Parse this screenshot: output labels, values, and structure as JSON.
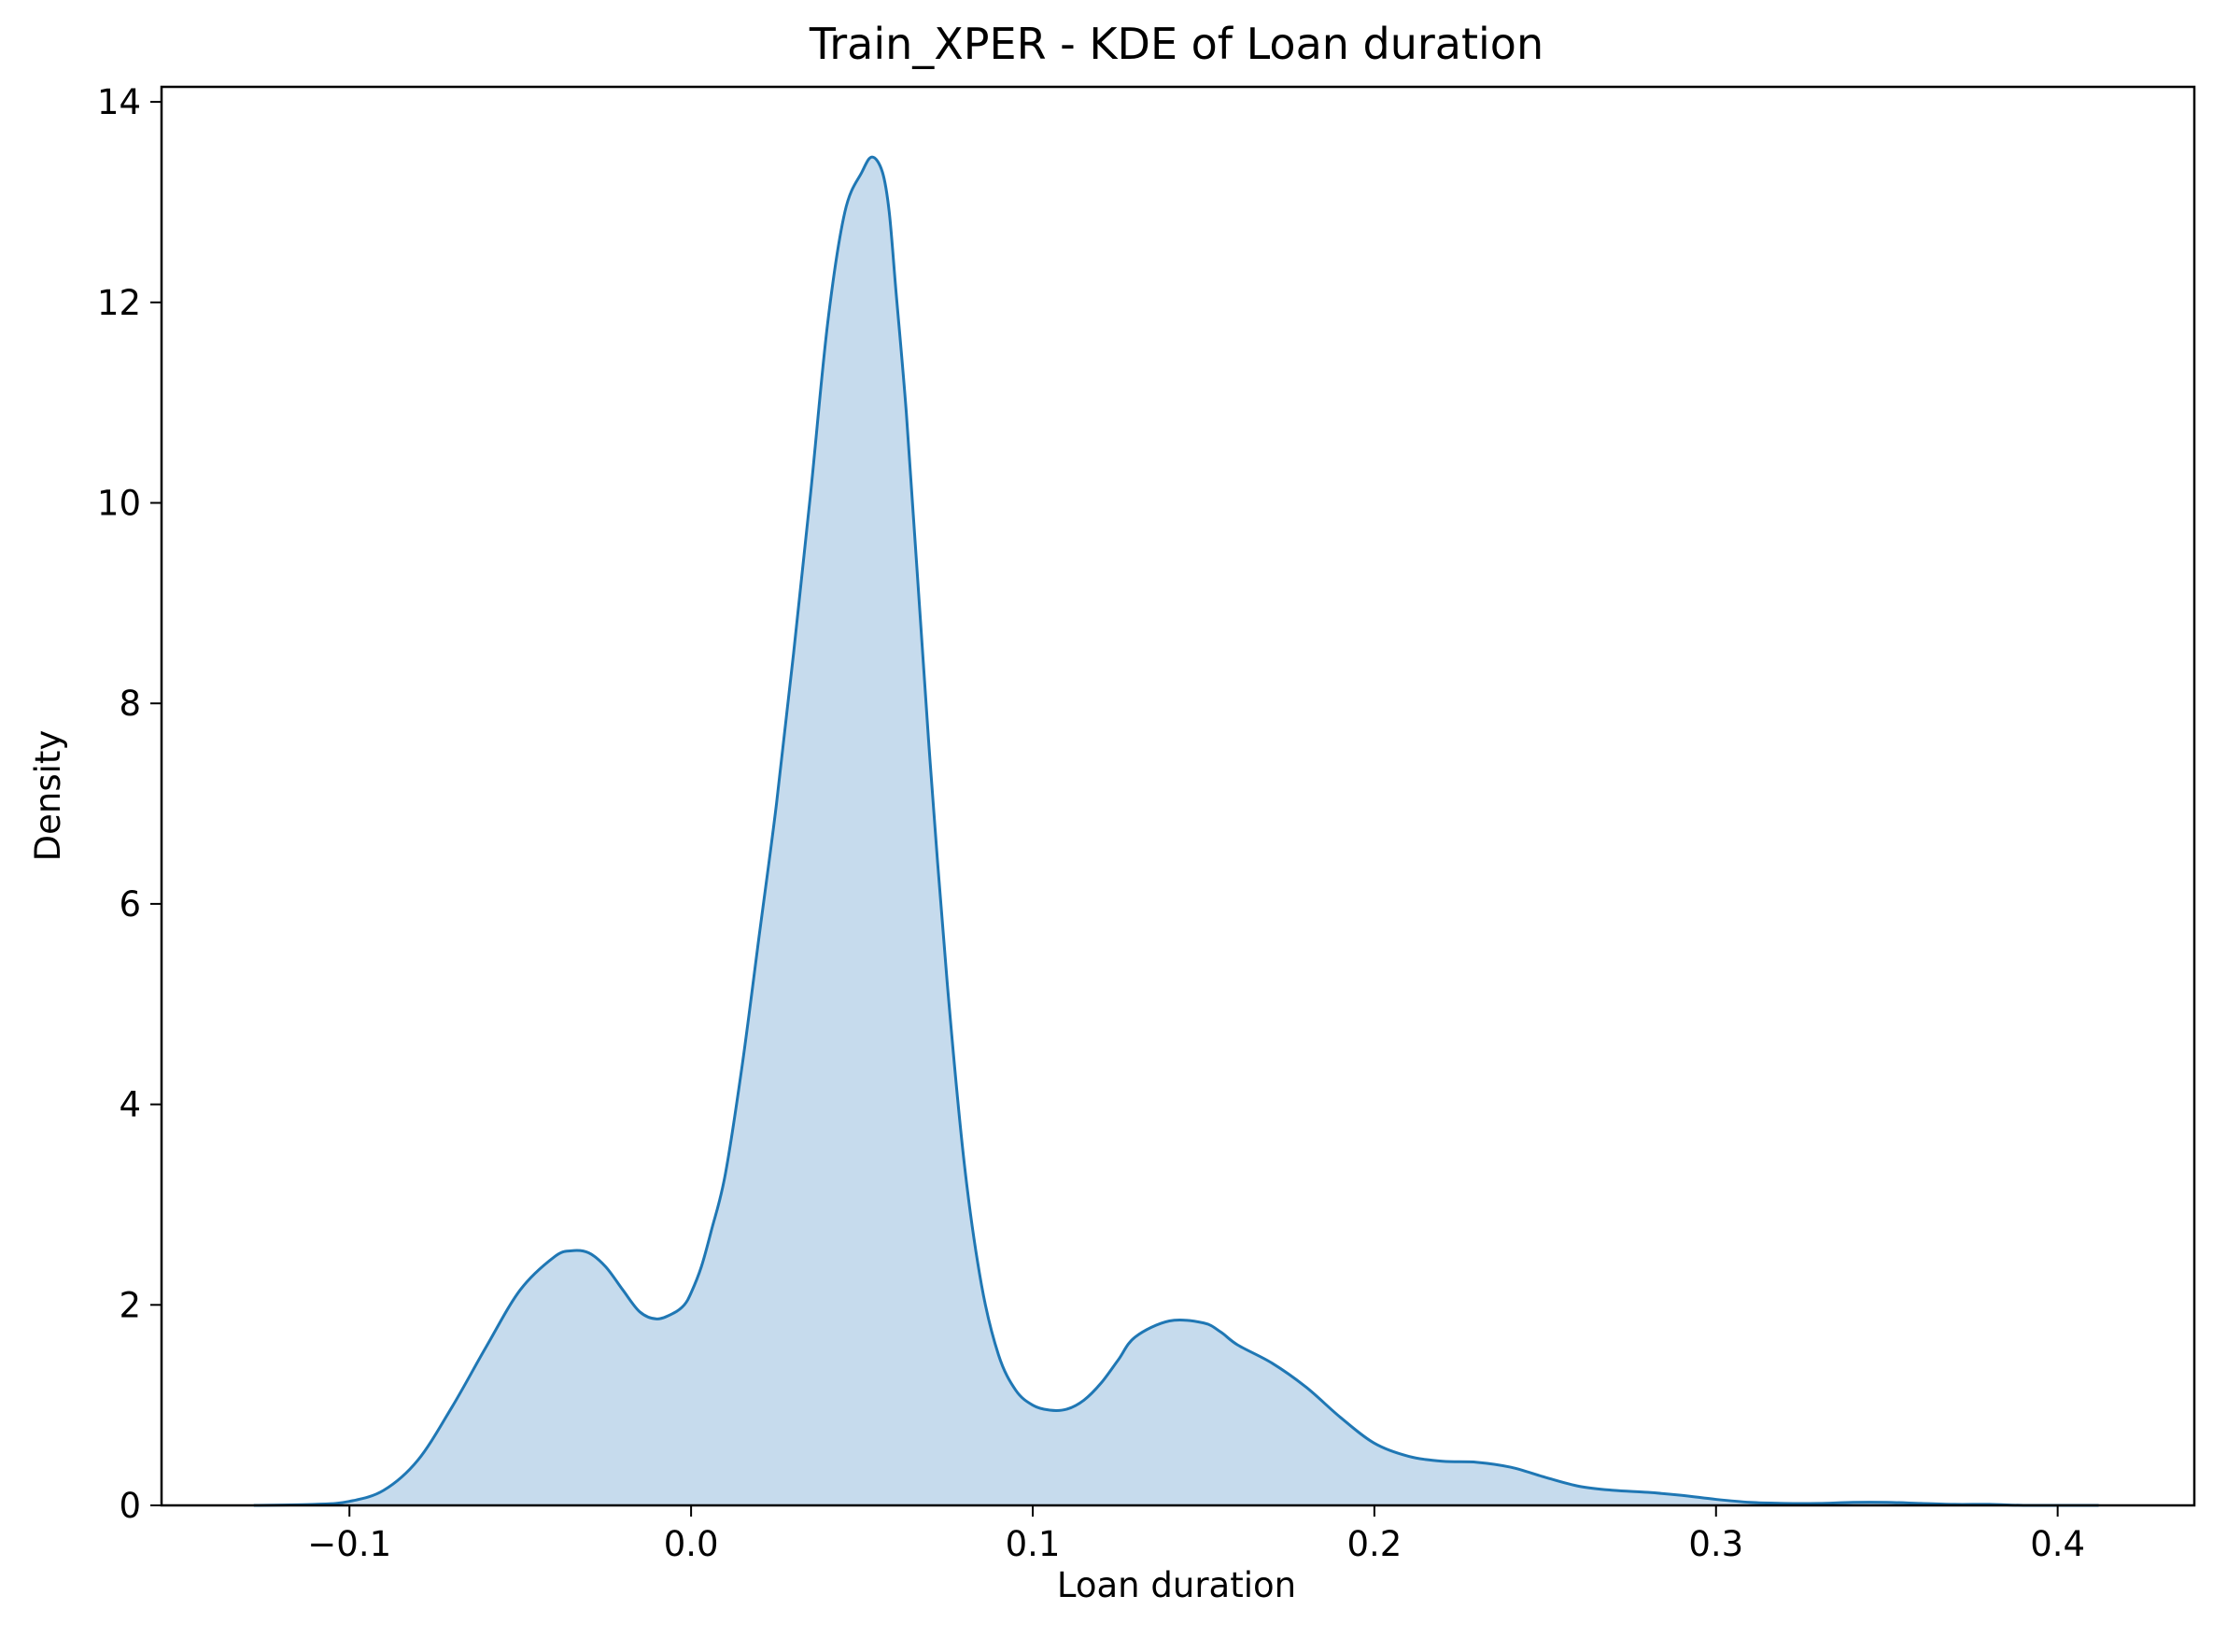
{
  "chart_data": {
    "type": "area",
    "title": "Train_XPER - KDE of Loan duration",
    "xlabel": "Loan duration",
    "ylabel": "Density",
    "xlim": [
      -0.155,
      0.44
    ],
    "ylim": [
      0,
      14.15
    ],
    "xticks": [
      -0.1,
      0.0,
      0.1,
      0.2,
      0.3,
      0.4
    ],
    "xtick_labels": [
      "−0.1",
      "0.0",
      "0.1",
      "0.2",
      "0.3",
      "0.4"
    ],
    "yticks": [
      0,
      2,
      4,
      6,
      8,
      10,
      12,
      14
    ],
    "ytick_labels": [
      "0",
      "2",
      "4",
      "6",
      "8",
      "10",
      "12",
      "14"
    ],
    "grid": false,
    "legend": "none",
    "line_color": "#1f77b4",
    "fill_color": "#c6dbed",
    "series": [
      {
        "x": [
          -0.128,
          -0.11,
          -0.1,
          -0.09,
          -0.08,
          -0.07,
          -0.06,
          -0.05,
          -0.04,
          -0.035,
          -0.03,
          -0.025,
          -0.02,
          -0.015,
          -0.01,
          -0.005,
          -0.002,
          0.0,
          0.003,
          0.006,
          0.01,
          0.015,
          0.02,
          0.025,
          0.03,
          0.035,
          0.04,
          0.045,
          0.05,
          0.053,
          0.056,
          0.058,
          0.06,
          0.063,
          0.066,
          0.07,
          0.075,
          0.08,
          0.085,
          0.09,
          0.095,
          0.1,
          0.105,
          0.11,
          0.115,
          0.12,
          0.125,
          0.13,
          0.14,
          0.15,
          0.155,
          0.16,
          0.17,
          0.18,
          0.19,
          0.2,
          0.21,
          0.22,
          0.23,
          0.24,
          0.25,
          0.26,
          0.27,
          0.28,
          0.29,
          0.3,
          0.31,
          0.32,
          0.33,
          0.34,
          0.35,
          0.36,
          0.37,
          0.38,
          0.39,
          0.4,
          0.412
        ],
        "y": [
          0.0,
          0.01,
          0.04,
          0.15,
          0.45,
          0.98,
          1.58,
          2.15,
          2.48,
          2.54,
          2.52,
          2.38,
          2.15,
          1.93,
          1.86,
          1.92,
          2.0,
          2.12,
          2.38,
          2.75,
          3.3,
          4.4,
          5.7,
          7.0,
          8.5,
          10.1,
          11.8,
          12.9,
          13.3,
          13.45,
          13.3,
          12.9,
          12.1,
          10.9,
          9.4,
          7.4,
          5.2,
          3.4,
          2.2,
          1.5,
          1.15,
          1.0,
          0.95,
          0.96,
          1.05,
          1.22,
          1.45,
          1.68,
          1.84,
          1.82,
          1.73,
          1.6,
          1.42,
          1.18,
          0.88,
          0.62,
          0.49,
          0.44,
          0.43,
          0.38,
          0.28,
          0.19,
          0.15,
          0.13,
          0.1,
          0.06,
          0.03,
          0.02,
          0.02,
          0.03,
          0.03,
          0.02,
          0.01,
          0.01,
          0.0,
          0.0,
          0.0
        ]
      }
    ]
  }
}
